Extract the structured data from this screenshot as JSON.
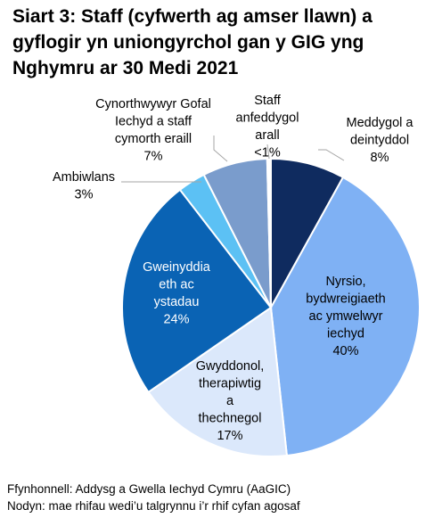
{
  "title_lines": [
    "Siart 3: Staff (cyfwerth ag amser llawn) a",
    "gyflogir yn uniongyrchol gan y GIG yng",
    "Nghymru ar 30 Medi 2021"
  ],
  "notes": [
    "Ffynhonnell: Addysg a Gwella Iechyd Cymru (AaGIC)",
    "Nodyn: mae rhifau wedi’u talgrynnu i’r rhif cyfan agosaf"
  ],
  "chart_data": {
    "type": "pie",
    "title": "Siart 3: Staff (cyfwerth ag amser llawn) a gyflogir yn uniongyrchol gan y GIG yng Nghymru ar 30 Medi 2021",
    "slices": [
      {
        "label": [
          "Meddygol a",
          "deintyddol"
        ],
        "value_label": "8%",
        "value": 8,
        "color": "#0f2b5f"
      },
      {
        "label": [
          "Nyrsio,",
          "bydwreigiaeth",
          "ac ymwelwyr",
          "iechyd"
        ],
        "value_label": "40%",
        "value": 40,
        "color": "#7fb1f4"
      },
      {
        "label": [
          "Gwyddonol,",
          "therapiwtig",
          "a",
          "thechnegol"
        ],
        "value_label": "17%",
        "value": 17,
        "color": "#dbe8fb"
      },
      {
        "label": [
          "Gweinyddia",
          "eth ac",
          "ystadau"
        ],
        "value_label": "24%",
        "value": 24,
        "color": "#0a63b4"
      },
      {
        "label": [
          "Ambiwlans"
        ],
        "value_label": "3%",
        "value": 3,
        "color": "#5cc1f4"
      },
      {
        "label": [
          "Cynorthwywyr Gofal",
          "Iechyd a staff",
          "cymorth eraill"
        ],
        "value_label": "7%",
        "value": 7,
        "color": "#7a9ccc"
      },
      {
        "label": [
          "Staff",
          "anfeddygol",
          "arall"
        ],
        "value_label": "<1%",
        "value": 0.4,
        "color": "#ffffff"
      }
    ]
  }
}
